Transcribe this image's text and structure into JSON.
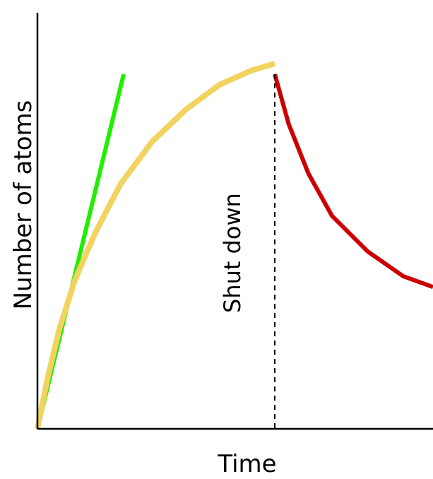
{
  "chart_data": {
    "type": "line",
    "title": "",
    "xlabel": "Time",
    "ylabel": "Number of atoms",
    "xlim": [
      0,
      100
    ],
    "ylim": [
      0,
      100
    ],
    "grid": false,
    "legend": "none",
    "series": [
      {
        "color": "#22ee00",
        "x": [
          0,
          21.8
        ],
        "y": [
          0,
          100
        ]
      },
      {
        "color": "#f2d360",
        "x": [
          0,
          2.5,
          5.5,
          9.5,
          14.5,
          21,
          29,
          37.5,
          46,
          54,
          60
        ],
        "y": [
          0,
          14,
          28,
          42,
          55,
          69,
          81,
          90,
          97,
          101,
          103
        ]
      },
      {
        "color": "#cc0000",
        "x": [
          60,
          63.5,
          68.5,
          74.5,
          83.5,
          92.5,
          100
        ],
        "y": [
          100,
          86,
          72,
          60,
          50,
          43,
          40
        ]
      }
    ],
    "annotations": [
      {
        "text": "Shut down",
        "x": 60
      }
    ]
  }
}
